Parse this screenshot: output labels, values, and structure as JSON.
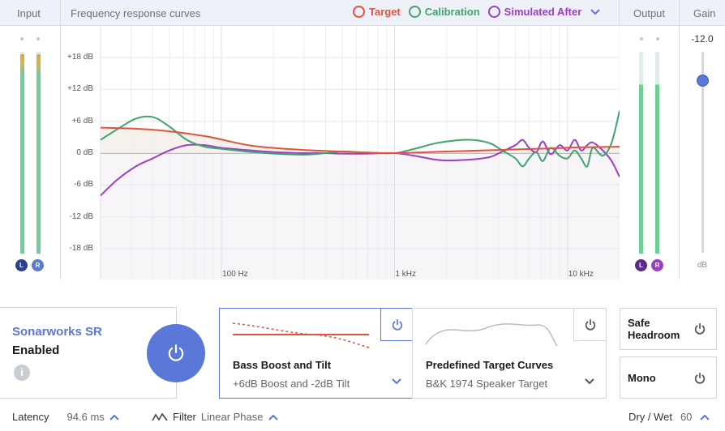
{
  "header": {
    "input_label": "Input",
    "graph_label": "Frequency response curves",
    "output_label": "Output",
    "gain_label": "Gain",
    "legend": [
      {
        "label": "Target",
        "color": "#e0533f"
      },
      {
        "label": "Calibration",
        "color": "#3fa56c"
      },
      {
        "label": "Simulated After",
        "color": "#9b3fc4"
      }
    ]
  },
  "meters": {
    "input": {
      "left_badge": "L",
      "right_badge": "R",
      "left_level": 0.99,
      "right_level": 0.99
    },
    "output": {
      "left_badge": "L",
      "right_badge": "R",
      "left_level": 0.85,
      "right_level": 0.85
    },
    "gain": {
      "value": "-12.0",
      "unit": "dB",
      "level": 0.86
    }
  },
  "chart_data": {
    "type": "line",
    "xscale": "log",
    "xlim": [
      20,
      20000
    ],
    "ylim": [
      -24,
      24
    ],
    "y_ticks": [
      "+18 dB",
      "+12 dB",
      "+6 dB",
      "0 dB",
      "-6 dB",
      "-12 dB",
      "-18 dB"
    ],
    "x_ticks": [
      "100 Hz",
      "1 kHz",
      "10 kHz"
    ],
    "grid": true,
    "series": [
      {
        "name": "Target",
        "color": "#e0533f",
        "x": [
          20,
          40,
          80,
          150,
          300,
          600,
          1000,
          2000,
          4000,
          8000,
          12000,
          20000
        ],
        "y": [
          4.8,
          4.4,
          3.2,
          1.4,
          0.6,
          0.2,
          0.0,
          0.3,
          0.6,
          0.9,
          1.1,
          1.2
        ]
      },
      {
        "name": "Calibration",
        "color": "#3fa56c",
        "x": [
          20,
          25,
          32,
          40,
          50,
          63,
          80,
          100,
          150,
          200,
          300,
          400,
          500,
          700,
          1000,
          1300,
          1700,
          2000,
          2500,
          3000,
          3600,
          4200,
          5000,
          5500,
          6000,
          6600,
          7200,
          8000,
          9000,
          10000,
          11000,
          12000,
          13000,
          14000,
          16000,
          18000,
          20000
        ],
        "y": [
          2.5,
          4.5,
          6.5,
          6.8,
          5.0,
          2.5,
          1.2,
          0.8,
          0.2,
          -0.1,
          -0.3,
          0.0,
          0.3,
          0.1,
          0.0,
          0.8,
          1.8,
          2.2,
          2.5,
          2.4,
          1.8,
          0.5,
          -1.0,
          -2.5,
          -1.0,
          0.2,
          -1.5,
          1.0,
          -0.5,
          -1.0,
          0.5,
          -1.0,
          -2.5,
          1.0,
          -0.5,
          2.0,
          8.0
        ]
      },
      {
        "name": "Simulated After",
        "color": "#9b3fc4",
        "x": [
          20,
          25,
          32,
          40,
          50,
          63,
          80,
          100,
          150,
          200,
          300,
          400,
          500,
          700,
          1000,
          1300,
          1700,
          2000,
          2500,
          3000,
          3600,
          4200,
          5000,
          5500,
          6000,
          6600,
          7200,
          8000,
          9000,
          10000,
          11000,
          12000,
          13000,
          14000,
          16000,
          18000,
          20000
        ],
        "y": [
          -8.0,
          -5.0,
          -2.5,
          -1.0,
          0.5,
          1.5,
          1.5,
          1.0,
          0.5,
          0.2,
          0.0,
          0.0,
          -0.1,
          -0.1,
          0.0,
          -0.5,
          -1.2,
          -1.4,
          -1.3,
          -1.1,
          -0.7,
          0.3,
          1.5,
          2.5,
          1.0,
          0.2,
          2.2,
          -0.2,
          1.5,
          0.5,
          2.5,
          0.5,
          1.5,
          2.0,
          0.5,
          -1.5,
          -4.5
        ]
      }
    ]
  },
  "enable_panel": {
    "product": "Sonarworks SR",
    "status": "Enabled",
    "info": "i"
  },
  "eq_panel": {
    "title": "Bass Boost and Tilt",
    "value": "+6dB Boost and -2dB Tilt"
  },
  "target_panel": {
    "title": "Predefined Target Curves",
    "value": "B&K 1974 Speaker Target"
  },
  "side_buttons": {
    "safe_headroom_line1": "Safe",
    "safe_headroom_line2": "Headroom",
    "mono": "Mono"
  },
  "status_bar": {
    "latency_label": "Latency",
    "latency_value": "94.6 ms",
    "filter_label": "Filter",
    "filter_value": "Linear Phase",
    "dry_wet_label": "Dry / Wet",
    "dry_wet_value": "60"
  }
}
